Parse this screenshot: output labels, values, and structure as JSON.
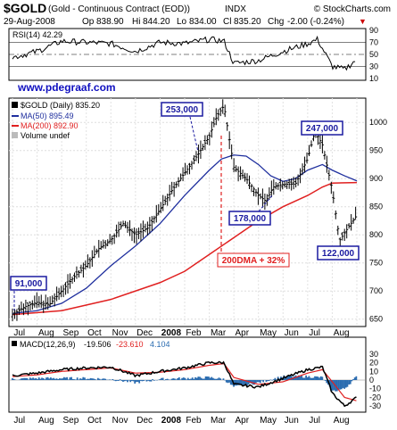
{
  "header": {
    "symbol": "$GOLD",
    "name": "(Gold - Continuous Contract (EOD))",
    "exchange": "INDX",
    "watermark": "© StockCharts.com",
    "date": "29-Aug-2008",
    "op_label": "Op",
    "op": "838.90",
    "hi_label": "Hi",
    "hi": "844.20",
    "lo_label": "Lo",
    "lo": "834.00",
    "cl_label": "Cl",
    "cl": "835.20",
    "chg_label": "Chg",
    "chg": "-2.00 (-0.24%)",
    "chg_arrow": "▼"
  },
  "rsi": {
    "label": "RSI(14) 42.29",
    "ticks": [
      "90",
      "70",
      "50",
      "30",
      "10"
    ]
  },
  "url": "www.pdegraaf.com",
  "legend": {
    "price": "$GOLD (Daily) 835.20",
    "ma50": "MA(50) 895.49",
    "ma200": "MA(200) 892.90",
    "volume": "Volume undef"
  },
  "annotations": {
    "a91": "91,000",
    "a253": "253,000",
    "a178": "178,000",
    "a247": "247,000",
    "a122": "122,000",
    "dma": "200DMA + 32%"
  },
  "macd": {
    "label": "MACD(12,26,9)",
    "v1": "-19.506",
    "v2": "-23.610",
    "v3": "4.104",
    "ticks": [
      "30",
      "20",
      "10",
      "0",
      "-10",
      "-20",
      "-30"
    ]
  },
  "months": [
    "Jul",
    "Aug",
    "Sep",
    "Oct",
    "Nov",
    "Dec",
    "2008",
    "Feb",
    "Mar",
    "Apr",
    "May",
    "Jun",
    "Jul",
    "Aug"
  ],
  "colors": {
    "price": "#000000",
    "ma50": "#1f2f9e",
    "ma200": "#e02020",
    "annotation_box": "#1a1aa0",
    "url": "#1010c0",
    "dma": "#e02020",
    "histogram": "#2b6cb0"
  },
  "chart_data": {
    "type": "line",
    "title": "$GOLD (Gold - Continuous Contract (EOD)) INDX",
    "ylim": [
      640,
      1040
    ],
    "yticks": [
      650,
      700,
      750,
      800,
      850,
      900,
      950,
      1000
    ],
    "x_range_months": [
      "Jul 2007",
      "Aug 2008"
    ],
    "series": [
      {
        "name": "$GOLD (Daily)",
        "points": [
          [
            0,
            658
          ],
          [
            0.5,
            672
          ],
          [
            1,
            680
          ],
          [
            1.5,
            676
          ],
          [
            2,
            700
          ],
          [
            2.5,
            725
          ],
          [
            3,
            745
          ],
          [
            3.5,
            775
          ],
          [
            4,
            790
          ],
          [
            4.5,
            820
          ],
          [
            5,
            800
          ],
          [
            5.5,
            812
          ],
          [
            6,
            845
          ],
          [
            6.5,
            880
          ],
          [
            7,
            910
          ],
          [
            7.5,
            940
          ],
          [
            8,
            975
          ],
          [
            8.3,
            1010
          ],
          [
            8.6,
            1030
          ],
          [
            9,
            920
          ],
          [
            9.5,
            900
          ],
          [
            10,
            870
          ],
          [
            10.3,
            860
          ],
          [
            10.6,
            885
          ],
          [
            11,
            890
          ],
          [
            11.5,
            890
          ],
          [
            12,
            935
          ],
          [
            12.3,
            985
          ],
          [
            12.6,
            960
          ],
          [
            13,
            880
          ],
          [
            13.3,
            790
          ],
          [
            13.6,
            810
          ],
          [
            14,
            835
          ]
        ]
      },
      {
        "name": "MA(50)",
        "points": [
          [
            0,
            660
          ],
          [
            1,
            665
          ],
          [
            2,
            678
          ],
          [
            3,
            705
          ],
          [
            4,
            745
          ],
          [
            5,
            780
          ],
          [
            6,
            820
          ],
          [
            7,
            870
          ],
          [
            8,
            915
          ],
          [
            8.5,
            935
          ],
          [
            9,
            942
          ],
          [
            9.5,
            940
          ],
          [
            10,
            925
          ],
          [
            10.5,
            905
          ],
          [
            11,
            895
          ],
          [
            11.5,
            900
          ],
          [
            12,
            915
          ],
          [
            12.6,
            925
          ],
          [
            13,
            915
          ],
          [
            13.5,
            905
          ],
          [
            14,
            896
          ]
        ]
      },
      {
        "name": "MA(200)",
        "points": [
          [
            0,
            658
          ],
          [
            2,
            665
          ],
          [
            4,
            685
          ],
          [
            6,
            715
          ],
          [
            7,
            735
          ],
          [
            8,
            765
          ],
          [
            9,
            795
          ],
          [
            10,
            825
          ],
          [
            11,
            850
          ],
          [
            12,
            870
          ],
          [
            12.6,
            885
          ],
          [
            13,
            892
          ],
          [
            14,
            893
          ]
        ]
      }
    ],
    "rsi": {
      "ylim": [
        10,
        90
      ],
      "points": [
        [
          0,
          45
        ],
        [
          1,
          55
        ],
        [
          2,
          72
        ],
        [
          3,
          70
        ],
        [
          4,
          68
        ],
        [
          5,
          55
        ],
        [
          6,
          70
        ],
        [
          7,
          68
        ],
        [
          8,
          75
        ],
        [
          8.6,
          72
        ],
        [
          9,
          35
        ],
        [
          10,
          40
        ],
        [
          11,
          55
        ],
        [
          12,
          68
        ],
        [
          12.4,
          75
        ],
        [
          13,
          30
        ],
        [
          13.5,
          25
        ],
        [
          14,
          42
        ]
      ]
    },
    "macd": {
      "ylim": [
        -35,
        35
      ],
      "macd_line": [
        [
          0,
          5
        ],
        [
          1,
          8
        ],
        [
          2,
          12
        ],
        [
          3,
          14
        ],
        [
          4,
          15
        ],
        [
          5,
          5
        ],
        [
          6,
          10
        ],
        [
          7,
          14
        ],
        [
          8,
          20
        ],
        [
          8.6,
          20
        ],
        [
          9,
          -5
        ],
        [
          10,
          -8
        ],
        [
          11,
          2
        ],
        [
          12,
          12
        ],
        [
          12.6,
          15
        ],
        [
          13,
          -15
        ],
        [
          13.5,
          -30
        ],
        [
          14,
          -20
        ]
      ],
      "signal_line": [
        [
          0,
          4
        ],
        [
          1,
          6
        ],
        [
          2,
          10
        ],
        [
          3,
          12
        ],
        [
          4,
          14
        ],
        [
          5,
          8
        ],
        [
          6,
          9
        ],
        [
          7,
          12
        ],
        [
          8,
          17
        ],
        [
          8.6,
          19
        ],
        [
          9,
          3
        ],
        [
          10,
          -5
        ],
        [
          11,
          -2
        ],
        [
          12,
          8
        ],
        [
          12.6,
          12
        ],
        [
          13,
          -2
        ],
        [
          13.5,
          -20
        ],
        [
          14,
          -24
        ]
      ]
    }
  }
}
